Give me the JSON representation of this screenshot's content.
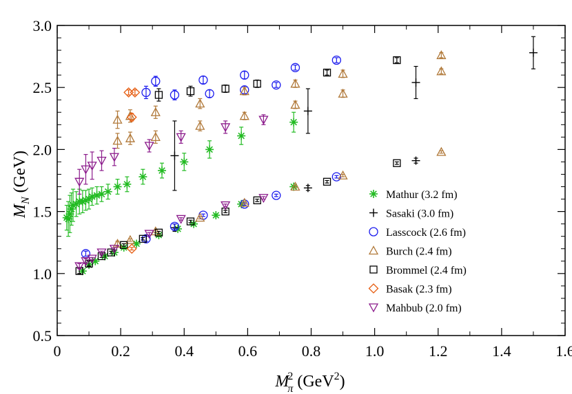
{
  "chart_data": {
    "type": "scatter",
    "title": "",
    "xlabel": "M_π^2 (GeV^2)",
    "ylabel": "M_N (GeV)",
    "xlim": [
      0,
      1.6
    ],
    "ylim": [
      0.5,
      3.0
    ],
    "x_ticks": [
      "0",
      "0.2",
      "0.4",
      "0.6",
      "0.8",
      "1.0",
      "1.2",
      "1.4",
      "1.6"
    ],
    "y_ticks": [
      "0.5",
      "1.0",
      "1.5",
      "2.0",
      "2.5",
      "3.0"
    ],
    "legend_position": "lower-right",
    "series": [
      {
        "name": "Mathur (3.2 fm)",
        "marker": "asterisk",
        "color": "#22bb22",
        "points": [
          [
            0.03,
            1.45,
            0.1
          ],
          [
            0.035,
            1.44,
            0.14
          ],
          [
            0.04,
            1.48,
            0.15
          ],
          [
            0.045,
            1.52,
            0.13
          ],
          [
            0.05,
            1.55,
            0.13
          ],
          [
            0.06,
            1.56,
            0.1
          ],
          [
            0.07,
            1.58,
            0.1
          ],
          [
            0.08,
            1.58,
            0.09
          ],
          [
            0.09,
            1.59,
            0.08
          ],
          [
            0.1,
            1.6,
            0.08
          ],
          [
            0.11,
            1.62,
            0.07
          ],
          [
            0.125,
            1.63,
            0.07
          ],
          [
            0.14,
            1.64,
            0.06
          ],
          [
            0.16,
            1.66,
            0.06
          ],
          [
            0.19,
            1.7,
            0.06
          ],
          [
            0.22,
            1.72,
            0.06
          ],
          [
            0.27,
            1.78,
            0.06
          ],
          [
            0.33,
            1.83,
            0.06
          ],
          [
            0.4,
            1.9,
            0.07
          ],
          [
            0.48,
            2.0,
            0.07
          ],
          [
            0.58,
            2.11,
            0.07
          ],
          [
            0.745,
            2.22,
            0.08
          ],
          [
            0.08,
            1.02,
            0.01
          ],
          [
            0.1,
            1.07,
            0.01
          ],
          [
            0.12,
            1.1,
            0.01
          ],
          [
            0.15,
            1.14,
            0.01
          ],
          [
            0.18,
            1.17,
            0.01
          ],
          [
            0.21,
            1.21,
            0.01
          ],
          [
            0.25,
            1.24,
            0.01
          ],
          [
            0.32,
            1.31,
            0.01
          ],
          [
            0.38,
            1.36,
            0.01
          ],
          [
            0.43,
            1.4,
            0.01
          ],
          [
            0.5,
            1.47,
            0.01
          ],
          [
            0.58,
            1.56,
            0.01
          ],
          [
            0.745,
            1.7,
            0.01
          ]
        ]
      },
      {
        "name": "Sasaki (3.0 fm)",
        "marker": "plus",
        "color": "#000000",
        "points": [
          [
            0.37,
            1.95,
            0.28
          ],
          [
            0.79,
            2.31,
            0.18
          ],
          [
            1.13,
            2.54,
            0.13
          ],
          [
            1.5,
            2.78,
            0.13
          ],
          [
            0.37,
            1.37,
            0.03
          ],
          [
            0.79,
            1.69,
            0.02
          ],
          [
            1.13,
            1.91,
            0.02
          ]
        ]
      },
      {
        "name": "Lasscock (2.6 fm)",
        "marker": "circle",
        "color": "#1a1aee",
        "points": [
          [
            0.28,
            2.46,
            0.05
          ],
          [
            0.31,
            2.55,
            0.04
          ],
          [
            0.37,
            2.44,
            0.04
          ],
          [
            0.46,
            2.56,
            0.03
          ],
          [
            0.48,
            2.45,
            0.03
          ],
          [
            0.59,
            2.6,
            0.03
          ],
          [
            0.59,
            2.48,
            0.03
          ],
          [
            0.69,
            2.52,
            0.02
          ],
          [
            0.75,
            2.66,
            0.02
          ],
          [
            0.88,
            2.72,
            0.02
          ],
          [
            0.09,
            1.16,
            0.02
          ],
          [
            0.28,
            1.28,
            0.02
          ],
          [
            0.37,
            1.38,
            0.02
          ],
          [
            0.46,
            1.47,
            0.01
          ],
          [
            0.59,
            1.56,
            0.01
          ],
          [
            0.69,
            1.63,
            0.01
          ],
          [
            0.88,
            1.78,
            0.01
          ]
        ]
      },
      {
        "name": "Burch (2.4 fm)",
        "marker": "triangle-up",
        "color": "#b07838",
        "points": [
          [
            0.19,
            2.24,
            0.07
          ],
          [
            0.23,
            2.27,
            0.05
          ],
          [
            0.31,
            2.3,
            0.05
          ],
          [
            0.45,
            2.37,
            0.04
          ],
          [
            0.59,
            2.47,
            0.03
          ],
          [
            0.75,
            2.53,
            0.03
          ],
          [
            0.9,
            2.61,
            0.03
          ],
          [
            1.21,
            2.76,
            0.02
          ],
          [
            0.19,
            2.07,
            0.06
          ],
          [
            0.23,
            2.09,
            0.05
          ],
          [
            0.31,
            2.1,
            0.05
          ],
          [
            0.45,
            2.19,
            0.04
          ],
          [
            0.59,
            2.27,
            0.03
          ],
          [
            0.75,
            2.36,
            0.03
          ],
          [
            0.9,
            2.45,
            0.03
          ],
          [
            1.21,
            2.63,
            0.02
          ],
          [
            0.19,
            1.24,
            0.02
          ],
          [
            0.23,
            1.27,
            0.01
          ],
          [
            0.31,
            1.34,
            0.01
          ],
          [
            0.45,
            1.45,
            0.01
          ],
          [
            0.59,
            1.57,
            0.01
          ],
          [
            0.75,
            1.7,
            0.01
          ],
          [
            0.9,
            1.79,
            0.01
          ],
          [
            1.21,
            1.98,
            0.01
          ]
        ]
      },
      {
        "name": "Brommel (2.4 fm)",
        "marker": "square",
        "color": "#000000",
        "points": [
          [
            0.32,
            2.44,
            0.05
          ],
          [
            0.42,
            2.47,
            0.04
          ],
          [
            0.53,
            2.49,
            0.03
          ],
          [
            0.63,
            2.53,
            0.03
          ],
          [
            0.85,
            2.62,
            0.02
          ],
          [
            1.07,
            2.72,
            0.02
          ],
          [
            0.07,
            1.02,
            0.02
          ],
          [
            0.1,
            1.08,
            0.02
          ],
          [
            0.14,
            1.14,
            0.01
          ],
          [
            0.17,
            1.17,
            0.01
          ],
          [
            0.21,
            1.23,
            0.01
          ],
          [
            0.27,
            1.28,
            0.01
          ],
          [
            0.32,
            1.33,
            0.01
          ],
          [
            0.42,
            1.42,
            0.01
          ],
          [
            0.53,
            1.5,
            0.01
          ],
          [
            0.63,
            1.59,
            0.01
          ],
          [
            0.85,
            1.74,
            0.01
          ],
          [
            1.07,
            1.89,
            0.01
          ]
        ]
      },
      {
        "name": "Basak (2.3 fm)",
        "marker": "diamond",
        "color": "#e65c10",
        "points": [
          [
            0.225,
            2.46,
            0.02
          ],
          [
            0.245,
            2.46,
            0.02
          ],
          [
            0.235,
            2.26,
            0.03
          ],
          [
            0.235,
            1.2,
            0.01
          ]
        ]
      },
      {
        "name": "Mahbub (2.0 fm)",
        "marker": "triangle-down",
        "color": "#8b1a8b",
        "points": [
          [
            0.07,
            1.74,
            0.1
          ],
          [
            0.09,
            1.84,
            0.12
          ],
          [
            0.11,
            1.87,
            0.11
          ],
          [
            0.14,
            1.91,
            0.08
          ],
          [
            0.18,
            1.94,
            0.07
          ],
          [
            0.29,
            2.03,
            0.05
          ],
          [
            0.39,
            2.1,
            0.05
          ],
          [
            0.53,
            2.18,
            0.05
          ],
          [
            0.65,
            2.24,
            0.04
          ],
          [
            0.07,
            1.06,
            0.02
          ],
          [
            0.09,
            1.1,
            0.02
          ],
          [
            0.11,
            1.12,
            0.01
          ],
          [
            0.14,
            1.17,
            0.01
          ],
          [
            0.18,
            1.2,
            0.01
          ],
          [
            0.29,
            1.32,
            0.01
          ],
          [
            0.39,
            1.44,
            0.01
          ],
          [
            0.53,
            1.55,
            0.01
          ],
          [
            0.65,
            1.61,
            0.01
          ]
        ]
      }
    ]
  }
}
